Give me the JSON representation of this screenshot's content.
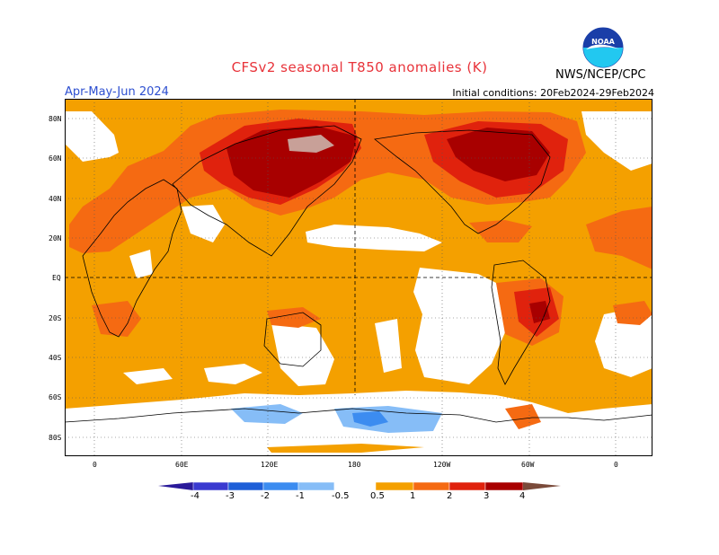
{
  "title": "CFSv2 seasonal T850 anomalies (K)",
  "season": "Apr-May-Jun 2024",
  "initial_conditions": "Initial conditions: 20Feb2024-29Feb2024",
  "agency": "NWS/NCEP/CPC",
  "logo_text": "NOAA",
  "lat_labels": [
    "80N",
    "60N",
    "40N",
    "20N",
    "EQ",
    "20S",
    "40S",
    "60S",
    "80S"
  ],
  "lon_labels": [
    "0",
    "60E",
    "120E",
    "180",
    "120W",
    "60W",
    "0"
  ],
  "colorbar": {
    "labels": [
      "-4",
      "-3",
      "-2",
      "-1",
      "-0.5",
      "0.5",
      "1",
      "2",
      "3",
      "4"
    ],
    "colors": [
      "#2a1a9a",
      "#3a3ad0",
      "#1e5fd8",
      "#3c8cf0",
      "#86bdf7",
      "#ffffff",
      "#f4a000",
      "#f56a12",
      "#e0220d",
      "#a80000",
      "#c8a098",
      "#7a4a3a"
    ]
  },
  "legend_colors": {
    "white": "#ffffff",
    "light_orange": "#f4a000",
    "orange": "#f56a12",
    "red": "#e0220d",
    "dark_red": "#a80000",
    "pink": "#c8a098",
    "light_blue": "#86bdf7",
    "mid_blue": "#3c8cf0"
  }
}
